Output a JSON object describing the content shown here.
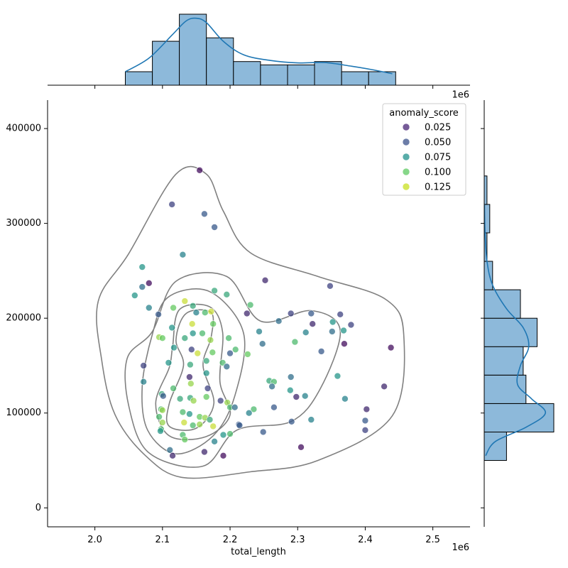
{
  "chart_data": {
    "type": "scatter",
    "subtype": "jointplot",
    "xlabel": "total_length",
    "ylabel": "",
    "x_scale_label": "1e6",
    "x_ticks": [
      2.0,
      2.1,
      2.2,
      2.3,
      2.4,
      2.5
    ],
    "y_ticks": [
      0,
      100000,
      200000,
      300000,
      400000
    ],
    "xlim": [
      1.93,
      2.555
    ],
    "ylim": [
      -20000,
      430000
    ],
    "legend": {
      "title": "anomaly_score",
      "placement": "top-right",
      "entries": [
        {
          "label": "0.025",
          "color": "#482475"
        },
        {
          "label": "0.050",
          "color": "#3b528b"
        },
        {
          "label": "0.075",
          "color": "#21918c"
        },
        {
          "label": "0.100",
          "color": "#5ec962"
        },
        {
          "label": "0.125",
          "color": "#c8e020"
        }
      ]
    },
    "colormap": "viridis",
    "points": [
      {
        "x": 2.155,
        "y": 356000,
        "s": 0.02
      },
      {
        "x": 2.114,
        "y": 320000,
        "s": 0.04
      },
      {
        "x": 2.162,
        "y": 310000,
        "s": 0.05
      },
      {
        "x": 2.177,
        "y": 296000,
        "s": 0.05
      },
      {
        "x": 2.13,
        "y": 267000,
        "s": 0.07
      },
      {
        "x": 2.07,
        "y": 254000,
        "s": 0.08
      },
      {
        "x": 2.08,
        "y": 237000,
        "s": 0.02
      },
      {
        "x": 2.07,
        "y": 233000,
        "s": 0.06
      },
      {
        "x": 2.059,
        "y": 224000,
        "s": 0.08
      },
      {
        "x": 2.08,
        "y": 211000,
        "s": 0.07
      },
      {
        "x": 2.094,
        "y": 204000,
        "s": 0.05
      },
      {
        "x": 2.116,
        "y": 211000,
        "s": 0.11
      },
      {
        "x": 2.133,
        "y": 218000,
        "s": 0.13
      },
      {
        "x": 2.145,
        "y": 213000,
        "s": 0.09
      },
      {
        "x": 2.15,
        "y": 206000,
        "s": 0.07
      },
      {
        "x": 2.163,
        "y": 206000,
        "s": 0.1
      },
      {
        "x": 2.172,
        "y": 207000,
        "s": 0.13
      },
      {
        "x": 2.177,
        "y": 229000,
        "s": 0.09
      },
      {
        "x": 2.195,
        "y": 225000,
        "s": 0.09
      },
      {
        "x": 2.23,
        "y": 214000,
        "s": 0.1
      },
      {
        "x": 2.225,
        "y": 205000,
        "s": 0.03
      },
      {
        "x": 2.252,
        "y": 240000,
        "s": 0.03
      },
      {
        "x": 2.348,
        "y": 234000,
        "s": 0.04
      },
      {
        "x": 2.29,
        "y": 205000,
        "s": 0.04
      },
      {
        "x": 2.32,
        "y": 205000,
        "s": 0.05
      },
      {
        "x": 2.363,
        "y": 204000,
        "s": 0.04
      },
      {
        "x": 2.379,
        "y": 193000,
        "s": 0.04
      },
      {
        "x": 2.272,
        "y": 197000,
        "s": 0.06
      },
      {
        "x": 2.322,
        "y": 194000,
        "s": 0.03
      },
      {
        "x": 2.352,
        "y": 196000,
        "s": 0.08
      },
      {
        "x": 2.351,
        "y": 186000,
        "s": 0.06
      },
      {
        "x": 2.368,
        "y": 187000,
        "s": 0.08
      },
      {
        "x": 2.312,
        "y": 185000,
        "s": 0.07
      },
      {
        "x": 2.243,
        "y": 186000,
        "s": 0.07
      },
      {
        "x": 2.248,
        "y": 173000,
        "s": 0.06
      },
      {
        "x": 2.296,
        "y": 175000,
        "s": 0.1
      },
      {
        "x": 2.335,
        "y": 165000,
        "s": 0.05
      },
      {
        "x": 2.369,
        "y": 173000,
        "s": 0.02
      },
      {
        "x": 2.438,
        "y": 169000,
        "s": 0.02
      },
      {
        "x": 2.133,
        "y": 179000,
        "s": 0.09
      },
      {
        "x": 2.145,
        "y": 184000,
        "s": 0.08
      },
      {
        "x": 2.159,
        "y": 184000,
        "s": 0.1
      },
      {
        "x": 2.171,
        "y": 177000,
        "s": 0.12
      },
      {
        "x": 2.095,
        "y": 180000,
        "s": 0.12
      },
      {
        "x": 2.1,
        "y": 179000,
        "s": 0.11
      },
      {
        "x": 2.114,
        "y": 190000,
        "s": 0.08
      },
      {
        "x": 2.144,
        "y": 194000,
        "s": 0.13
      },
      {
        "x": 2.175,
        "y": 194000,
        "s": 0.11
      },
      {
        "x": 2.198,
        "y": 179000,
        "s": 0.1
      },
      {
        "x": 2.117,
        "y": 169000,
        "s": 0.08
      },
      {
        "x": 2.143,
        "y": 167000,
        "s": 0.04
      },
      {
        "x": 2.152,
        "y": 163000,
        "s": 0.13
      },
      {
        "x": 2.174,
        "y": 164000,
        "s": 0.11
      },
      {
        "x": 2.2,
        "y": 163000,
        "s": 0.05
      },
      {
        "x": 2.208,
        "y": 167000,
        "s": 0.1
      },
      {
        "x": 2.226,
        "y": 162000,
        "s": 0.11
      },
      {
        "x": 2.072,
        "y": 150000,
        "s": 0.04
      },
      {
        "x": 2.109,
        "y": 153000,
        "s": 0.08
      },
      {
        "x": 2.141,
        "y": 151000,
        "s": 0.09
      },
      {
        "x": 2.165,
        "y": 155000,
        "s": 0.09
      },
      {
        "x": 2.189,
        "y": 153000,
        "s": 0.1
      },
      {
        "x": 2.195,
        "y": 149000,
        "s": 0.06
      },
      {
        "x": 2.165,
        "y": 142000,
        "s": 0.08
      },
      {
        "x": 2.14,
        "y": 138000,
        "s": 0.03
      },
      {
        "x": 2.072,
        "y": 133000,
        "s": 0.07
      },
      {
        "x": 2.116,
        "y": 126000,
        "s": 0.1
      },
      {
        "x": 2.142,
        "y": 131000,
        "s": 0.12
      },
      {
        "x": 2.167,
        "y": 126000,
        "s": 0.04
      },
      {
        "x": 2.099,
        "y": 120000,
        "s": 0.09
      },
      {
        "x": 2.101,
        "y": 118000,
        "s": 0.05
      },
      {
        "x": 2.126,
        "y": 115000,
        "s": 0.09
      },
      {
        "x": 2.141,
        "y": 116000,
        "s": 0.09
      },
      {
        "x": 2.146,
        "y": 113000,
        "s": 0.12
      },
      {
        "x": 2.165,
        "y": 117000,
        "s": 0.11
      },
      {
        "x": 2.186,
        "y": 113000,
        "s": 0.04
      },
      {
        "x": 2.196,
        "y": 111000,
        "s": 0.12
      },
      {
        "x": 2.2,
        "y": 106000,
        "s": 0.1
      },
      {
        "x": 2.207,
        "y": 106000,
        "s": 0.06
      },
      {
        "x": 2.258,
        "y": 134000,
        "s": 0.09
      },
      {
        "x": 2.265,
        "y": 133000,
        "s": 0.1
      },
      {
        "x": 2.262,
        "y": 128000,
        "s": 0.06
      },
      {
        "x": 2.29,
        "y": 138000,
        "s": 0.06
      },
      {
        "x": 2.289,
        "y": 124000,
        "s": 0.08
      },
      {
        "x": 2.298,
        "y": 117000,
        "s": 0.03
      },
      {
        "x": 2.311,
        "y": 118000,
        "s": 0.07
      },
      {
        "x": 2.359,
        "y": 139000,
        "s": 0.08
      },
      {
        "x": 2.37,
        "y": 115000,
        "s": 0.07
      },
      {
        "x": 2.428,
        "y": 128000,
        "s": 0.03
      },
      {
        "x": 2.402,
        "y": 104000,
        "s": 0.03
      },
      {
        "x": 2.265,
        "y": 106000,
        "s": 0.05
      },
      {
        "x": 2.235,
        "y": 104000,
        "s": 0.1
      },
      {
        "x": 2.228,
        "y": 100000,
        "s": 0.07
      },
      {
        "x": 2.098,
        "y": 104000,
        "s": 0.1
      },
      {
        "x": 2.1,
        "y": 103000,
        "s": 0.12
      },
      {
        "x": 2.13,
        "y": 101000,
        "s": 0.1
      },
      {
        "x": 2.14,
        "y": 99000,
        "s": 0.08
      },
      {
        "x": 2.155,
        "y": 96000,
        "s": 0.11
      },
      {
        "x": 2.163,
        "y": 95000,
        "s": 0.12
      },
      {
        "x": 2.17,
        "y": 93000,
        "s": 0.09
      },
      {
        "x": 2.095,
        "y": 96000,
        "s": 0.1
      },
      {
        "x": 2.1,
        "y": 90000,
        "s": 0.12
      },
      {
        "x": 2.132,
        "y": 90000,
        "s": 0.13
      },
      {
        "x": 2.145,
        "y": 87000,
        "s": 0.1
      },
      {
        "x": 2.155,
        "y": 88000,
        "s": 0.12
      },
      {
        "x": 2.175,
        "y": 86000,
        "s": 0.13
      },
      {
        "x": 2.213,
        "y": 88000,
        "s": 0.05
      },
      {
        "x": 2.214,
        "y": 87000,
        "s": 0.05
      },
      {
        "x": 2.291,
        "y": 91000,
        "s": 0.05
      },
      {
        "x": 2.32,
        "y": 93000,
        "s": 0.07
      },
      {
        "x": 2.4,
        "y": 92000,
        "s": 0.05
      },
      {
        "x": 2.098,
        "y": 83000,
        "s": 0.1
      },
      {
        "x": 2.097,
        "y": 81000,
        "s": 0.08
      },
      {
        "x": 2.13,
        "y": 77000,
        "s": 0.1
      },
      {
        "x": 2.19,
        "y": 77000,
        "s": 0.08
      },
      {
        "x": 2.2,
        "y": 78000,
        "s": 0.1
      },
      {
        "x": 2.249,
        "y": 80000,
        "s": 0.05
      },
      {
        "x": 2.4,
        "y": 82000,
        "s": 0.04
      },
      {
        "x": 2.133,
        "y": 72000,
        "s": 0.11
      },
      {
        "x": 2.177,
        "y": 70000,
        "s": 0.07
      },
      {
        "x": 2.111,
        "y": 61000,
        "s": 0.06
      },
      {
        "x": 2.115,
        "y": 55000,
        "s": 0.03
      },
      {
        "x": 2.162,
        "y": 59000,
        "s": 0.03
      },
      {
        "x": 2.19,
        "y": 55000,
        "s": 0.02
      },
      {
        "x": 2.305,
        "y": 64000,
        "s": 0.02
      }
    ],
    "x_histogram": {
      "bin_edges": [
        2.045,
        2.085,
        2.125,
        2.165,
        2.205,
        2.245,
        2.285,
        2.325,
        2.365,
        2.405,
        2.445
      ],
      "counts": [
        4,
        13,
        21,
        14,
        7,
        6,
        6,
        7,
        4,
        4
      ]
    },
    "x_kde": [
      [
        2.045,
        4
      ],
      [
        2.08,
        8
      ],
      [
        2.115,
        15
      ],
      [
        2.135,
        19
      ],
      [
        2.15,
        19.8
      ],
      [
        2.165,
        18.5
      ],
      [
        2.19,
        13
      ],
      [
        2.22,
        9
      ],
      [
        2.26,
        7.3
      ],
      [
        2.3,
        6.6
      ],
      [
        2.34,
        6.7
      ],
      [
        2.38,
        5.6
      ],
      [
        2.41,
        4.6
      ],
      [
        2.44,
        3.4
      ]
    ],
    "y_histogram": {
      "bin_edges": [
        50000,
        80000,
        110000,
        140000,
        170000,
        200000,
        230000,
        260000,
        290000,
        320000,
        350000
      ],
      "counts": [
        8,
        25,
        15,
        14,
        19,
        13,
        3,
        1,
        2,
        1
      ]
    },
    "y_kde": [
      [
        55000,
        0.5
      ],
      [
        70000,
        4
      ],
      [
        85000,
        15
      ],
      [
        100000,
        22
      ],
      [
        115000,
        17
      ],
      [
        130000,
        12
      ],
      [
        150000,
        13
      ],
      [
        170000,
        16
      ],
      [
        190000,
        14
      ],
      [
        210000,
        8
      ],
      [
        235000,
        3
      ],
      [
        260000,
        1
      ],
      [
        290000,
        0.3
      ],
      [
        320000,
        0.1
      ]
    ],
    "kde_contours": [
      [
        [
          2.05,
          268000
        ],
        [
          2.12,
          352000
        ],
        [
          2.165,
          352000
        ],
        [
          2.19,
          313000
        ],
        [
          2.23,
          269000
        ],
        [
          2.33,
          244000
        ],
        [
          2.43,
          220000
        ],
        [
          2.457,
          182000
        ],
        [
          2.44,
          97000
        ],
        [
          2.33,
          50000
        ],
        [
          2.23,
          38000
        ],
        [
          2.13,
          32000
        ],
        [
          2.075,
          55000
        ],
        [
          2.03,
          98000
        ],
        [
          2.01,
          156000
        ],
        [
          2.005,
          218000
        ]
      ],
      [
        [
          2.085,
          186000
        ],
        [
          2.12,
          239000
        ],
        [
          2.195,
          244000
        ],
        [
          2.245,
          197000
        ],
        [
          2.32,
          208000
        ],
        [
          2.363,
          187000
        ],
        [
          2.333,
          125000
        ],
        [
          2.29,
          91000
        ],
        [
          2.21,
          82000
        ],
        [
          2.16,
          44000
        ],
        [
          2.08,
          58000
        ],
        [
          2.05,
          108000
        ],
        [
          2.048,
          158000
        ]
      ],
      [
        [
          2.085,
          183000
        ],
        [
          2.108,
          222000
        ],
        [
          2.17,
          228000
        ],
        [
          2.22,
          184000
        ],
        [
          2.207,
          118000
        ],
        [
          2.175,
          76000
        ],
        [
          2.12,
          57000
        ],
        [
          2.078,
          82000
        ],
        [
          2.07,
          128000
        ]
      ],
      [
        [
          2.115,
          170000
        ],
        [
          2.125,
          209000
        ],
        [
          2.17,
          212000
        ],
        [
          2.189,
          185000
        ],
        [
          2.185,
          133000
        ],
        [
          2.2,
          98000
        ],
        [
          2.164,
          75000
        ],
        [
          2.11,
          76000
        ],
        [
          2.09,
          110000
        ],
        [
          2.11,
          148000
        ]
      ],
      [
        [
          2.12,
          177000
        ],
        [
          2.135,
          205000
        ],
        [
          2.172,
          206000
        ],
        [
          2.172,
          180000
        ],
        [
          2.16,
          150000
        ],
        [
          2.176,
          110000
        ],
        [
          2.15,
          84000
        ],
        [
          2.11,
          86000
        ],
        [
          2.11,
          110000
        ],
        [
          2.131,
          150000
        ]
      ]
    ]
  }
}
